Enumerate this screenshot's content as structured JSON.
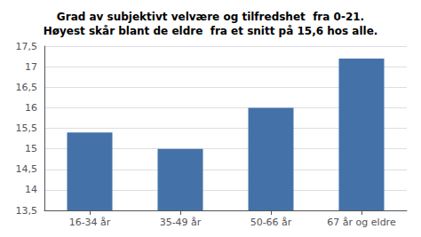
{
  "chart_data": {
    "type": "bar",
    "title": "Grad av subjektivt velvære og tilfredshet  fra 0-21.\nHøyest skår blant de eldre  fra et snitt på 15,6 hos alle.",
    "categories": [
      "16-34 år",
      "35-49 år",
      "50-66 år",
      "67 år og eldre"
    ],
    "values": [
      15.4,
      15.0,
      16.0,
      17.2
    ],
    "color": "#4472A8",
    "ylim": [
      13.5,
      17.5
    ],
    "yticks": [
      {
        "value": 13.5,
        "label": "13,5"
      },
      14,
      {
        "value": 14.5,
        "label": "14,5"
      },
      15,
      {
        "value": 15.5,
        "label": "15,5"
      },
      16,
      {
        "value": 16.5,
        "label": "16,5"
      },
      17,
      {
        "value": 17.5,
        "label": "17,5"
      }
    ],
    "grid": true
  }
}
